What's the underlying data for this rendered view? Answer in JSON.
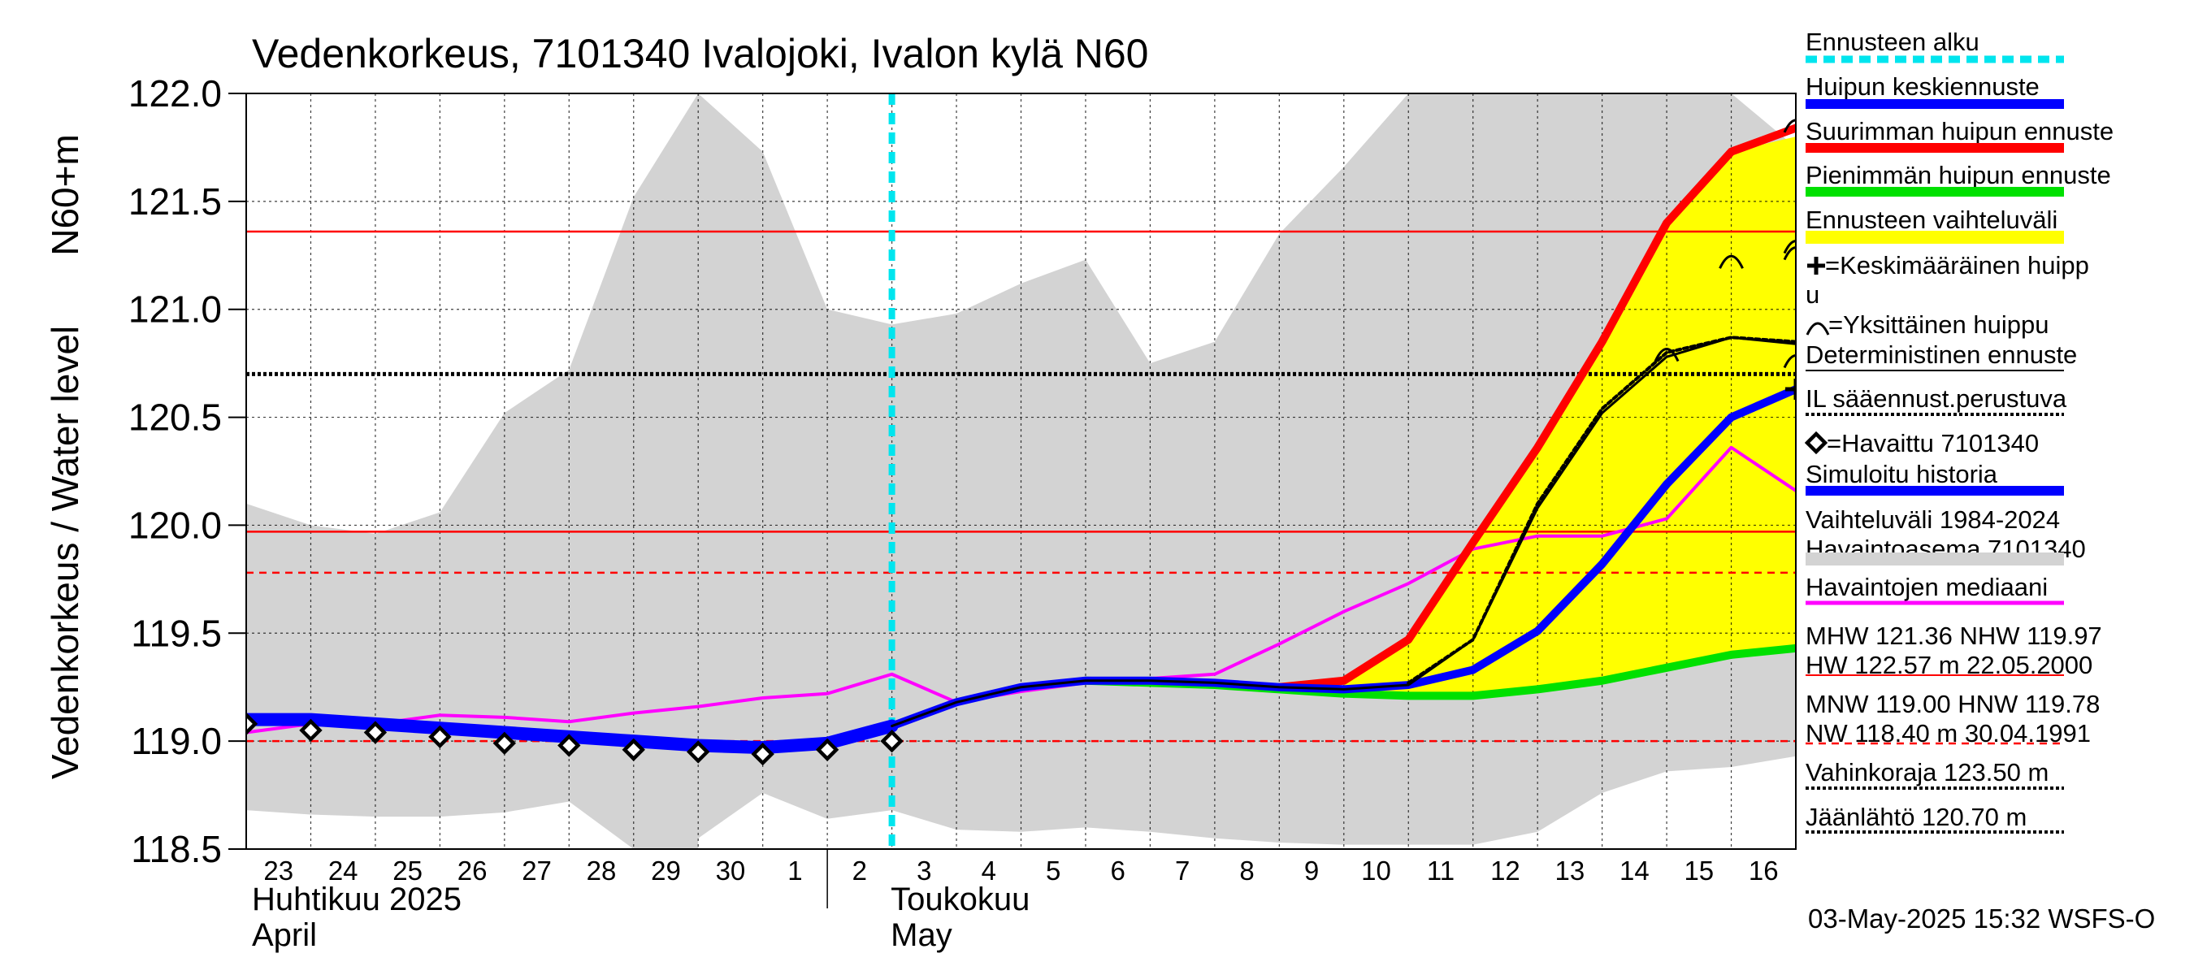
{
  "chart_data": {
    "type": "line",
    "title": "Vedenkorkeus, 7101340 Ivalojoki, Ivalon kylä N60",
    "ylabel": "Vedenkorkeus / Water level",
    "yunit": "N60+m",
    "ylim": [
      118.5,
      122.0
    ],
    "yticks": [
      118.5,
      119.0,
      119.5,
      120.0,
      120.5,
      121.0,
      121.5,
      122.0
    ],
    "ytick_labels": [
      "118.5",
      "119.0",
      "119.5",
      "120.0",
      "120.5",
      "121.0",
      "121.5",
      "122.0"
    ],
    "x_start": "2025-04-23",
    "x_end": "2025-05-17",
    "day_labels": [
      "23",
      "24",
      "25",
      "26",
      "27",
      "28",
      "29",
      "30",
      "1",
      "2",
      "3",
      "4",
      "5",
      "6",
      "7",
      "8",
      "9",
      "10",
      "11",
      "12",
      "13",
      "14",
      "15",
      "16"
    ],
    "month_labels": [
      {
        "fi": "Huhtikuu  2025",
        "en": "April",
        "start": "2025-04-23"
      },
      {
        "fi": "Toukokuu",
        "en": "May",
        "start": "2025-05-02"
      }
    ],
    "forecast_start": "2025-05-03",
    "grid": true,
    "legend_placement": "right",
    "timestamp": "03-May-2025 15:32 WSFS-O",
    "colors": {
      "history_range": "#d3d3d3",
      "forecast_range": "#ffff00",
      "mean_peak": "#0000ff",
      "max_peak": "#ff0000",
      "min_peak": "#00e000",
      "deterministic": "#000000",
      "median": "#ff00ff",
      "forecast_start": "#00e5ee",
      "ref_lines": "#ff0000"
    },
    "reference_lines": [
      {
        "label": "MHW",
        "value": 121.36,
        "style": "solid"
      },
      {
        "label": "NHW",
        "value": 119.97,
        "style": "solid"
      },
      {
        "label": "HNW",
        "value": 119.78,
        "style": "dashed"
      },
      {
        "label": "MNW",
        "value": 119.0,
        "style": "dashed"
      },
      {
        "label": "Jäänlähtö",
        "value": 120.7,
        "style": "dotted-black"
      }
    ],
    "series": [
      {
        "name": "Vaihteluväli 1984-2024",
        "key": "range_hi",
        "x": [
          "2025-04-23",
          "2025-04-24",
          "2025-04-25",
          "2025-04-26",
          "2025-04-27",
          "2025-04-28",
          "2025-04-29",
          "2025-04-30",
          "2025-05-01",
          "2025-05-02",
          "2025-05-03",
          "2025-05-04",
          "2025-05-05",
          "2025-05-06",
          "2025-05-07",
          "2025-05-08",
          "2025-05-09",
          "2025-05-10",
          "2025-05-11",
          "2025-05-12",
          "2025-05-13",
          "2025-05-14",
          "2025-05-15",
          "2025-05-16",
          "2025-05-17"
        ],
        "values": [
          120.1,
          120.0,
          119.96,
          120.06,
          120.52,
          120.72,
          121.52,
          122.0,
          121.73,
          121.0,
          120.93,
          120.98,
          121.12,
          121.23,
          120.75,
          120.85,
          121.35,
          121.66,
          122.0,
          122.0,
          122.0,
          122.0,
          122.0,
          122.0,
          121.75
        ]
      },
      {
        "key": "range_lo",
        "x": [
          "2025-04-23",
          "2025-04-24",
          "2025-04-25",
          "2025-04-26",
          "2025-04-27",
          "2025-04-28",
          "2025-04-29",
          "2025-04-30",
          "2025-04-30",
          "2025-05-01",
          "2025-05-02",
          "2025-05-03",
          "2025-05-04",
          "2025-05-05",
          "2025-05-06",
          "2025-05-07",
          "2025-05-08",
          "2025-05-09",
          "2025-05-10",
          "2025-05-11",
          "2025-05-12",
          "2025-05-13",
          "2025-05-14",
          "2025-05-15",
          "2025-05-16",
          "2025-05-17"
        ],
        "values": [
          118.68,
          118.66,
          118.65,
          118.65,
          118.67,
          118.72,
          118.5,
          118.5,
          118.55,
          118.76,
          118.64,
          118.68,
          118.59,
          118.58,
          118.6,
          118.58,
          118.55,
          118.53,
          118.52,
          118.52,
          118.52,
          118.58,
          118.76,
          118.86,
          118.88,
          118.93
        ]
      },
      {
        "name": "Ennusteen vaihteluväli",
        "key": "fc_hi",
        "x": [
          "2025-05-10",
          "2025-05-11",
          "2025-05-12",
          "2025-05-13",
          "2025-05-14",
          "2025-05-15",
          "2025-05-16",
          "2025-05-17"
        ],
        "values": [
          119.28,
          119.47,
          119.93,
          120.38,
          120.85,
          121.4,
          121.73,
          121.8
        ]
      },
      {
        "key": "fc_lo",
        "x": [
          "2025-05-10",
          "2025-05-11",
          "2025-05-12",
          "2025-05-13",
          "2025-05-14",
          "2025-05-15",
          "2025-05-16",
          "2025-05-17"
        ],
        "values": [
          119.22,
          119.21,
          119.21,
          119.24,
          119.28,
          119.34,
          119.4,
          119.43
        ]
      },
      {
        "name": "Havaittu 7101340",
        "key": "observed",
        "x": [
          "2025-04-23",
          "2025-04-24",
          "2025-04-25",
          "2025-04-26",
          "2025-04-27",
          "2025-04-28",
          "2025-04-29",
          "2025-04-30",
          "2025-05-01",
          "2025-05-02",
          "2025-05-03"
        ],
        "values": [
          119.08,
          119.05,
          119.04,
          119.02,
          118.99,
          118.98,
          118.96,
          118.95,
          118.94,
          118.96,
          119.0
        ]
      },
      {
        "name": "Simuloitu historia",
        "key": "simulated",
        "x": [
          "2025-04-23",
          "2025-04-24",
          "2025-04-25",
          "2025-04-26",
          "2025-04-27",
          "2025-04-28",
          "2025-04-29",
          "2025-04-30",
          "2025-05-01",
          "2025-05-02",
          "2025-05-03"
        ],
        "values": [
          119.1,
          119.1,
          119.08,
          119.06,
          119.04,
          119.02,
          119.0,
          118.98,
          118.97,
          118.99,
          119.07
        ]
      },
      {
        "name": "Huipun keskiennuste",
        "key": "mean_peak",
        "x": [
          "2025-05-03",
          "2025-05-04",
          "2025-05-05",
          "2025-05-06",
          "2025-05-07",
          "2025-05-08",
          "2025-05-09",
          "2025-05-10",
          "2025-05-11",
          "2025-05-12",
          "2025-05-13",
          "2025-05-14",
          "2025-05-15",
          "2025-05-16",
          "2025-05-17"
        ],
        "values": [
          119.07,
          119.18,
          119.25,
          119.28,
          119.28,
          119.27,
          119.25,
          119.24,
          119.26,
          119.33,
          119.51,
          119.82,
          120.19,
          120.5,
          120.63
        ]
      },
      {
        "name": "Suurimman huipun ennuste",
        "key": "max_peak",
        "x": [
          "2025-05-09",
          "2025-05-10",
          "2025-05-11",
          "2025-05-12",
          "2025-05-13",
          "2025-05-14",
          "2025-05-15",
          "2025-05-16",
          "2025-05-17"
        ],
        "values": [
          119.25,
          119.28,
          119.47,
          119.92,
          120.36,
          120.85,
          121.4,
          121.73,
          121.84
        ]
      },
      {
        "name": "Pienimmän huipun ennuste",
        "key": "min_peak",
        "x": [
          "2025-05-06",
          "2025-05-07",
          "2025-05-08",
          "2025-05-09",
          "2025-05-10",
          "2025-05-11",
          "2025-05-12",
          "2025-05-13",
          "2025-05-14",
          "2025-05-15",
          "2025-05-16",
          "2025-05-17"
        ],
        "values": [
          119.28,
          119.27,
          119.26,
          119.24,
          119.22,
          119.21,
          119.21,
          119.24,
          119.28,
          119.34,
          119.4,
          119.43
        ]
      },
      {
        "name": "Deterministinen ennuste",
        "key": "deterministic",
        "x": [
          "2025-05-03",
          "2025-05-04",
          "2025-05-05",
          "2025-05-06",
          "2025-05-07",
          "2025-05-08",
          "2025-05-09",
          "2025-05-10",
          "2025-05-11",
          "2025-05-12",
          "2025-05-13",
          "2025-05-14",
          "2025-05-15",
          "2025-05-16",
          "2025-05-17"
        ],
        "values": [
          119.07,
          119.18,
          119.25,
          119.28,
          119.28,
          119.27,
          119.25,
          119.24,
          119.26,
          119.47,
          120.08,
          120.52,
          120.78,
          120.87,
          120.84
        ]
      },
      {
        "name": "IL sääennust.perustuva",
        "key": "il",
        "x": [
          "2025-05-11",
          "2025-05-12",
          "2025-05-13",
          "2025-05-14",
          "2025-05-15",
          "2025-05-16",
          "2025-05-17"
        ],
        "values": [
          119.27,
          119.47,
          120.1,
          120.54,
          120.8,
          120.87,
          120.85
        ]
      },
      {
        "name": "Havaintojen mediaani",
        "key": "median",
        "x": [
          "2025-04-23",
          "2025-04-24",
          "2025-04-25",
          "2025-04-26",
          "2025-04-27",
          "2025-04-28",
          "2025-04-29",
          "2025-04-30",
          "2025-05-01",
          "2025-05-02",
          "2025-05-03",
          "2025-05-04",
          "2025-05-05",
          "2025-05-06",
          "2025-05-07",
          "2025-05-08",
          "2025-05-09",
          "2025-05-10",
          "2025-05-11",
          "2025-05-12",
          "2025-05-13",
          "2025-05-14",
          "2025-05-15",
          "2025-05-16",
          "2025-05-17"
        ],
        "values": [
          119.04,
          119.08,
          119.08,
          119.12,
          119.11,
          119.09,
          119.13,
          119.16,
          119.2,
          119.22,
          119.31,
          119.18,
          119.23,
          119.27,
          119.29,
          119.31,
          119.45,
          119.6,
          119.73,
          119.89,
          119.95,
          119.95,
          120.03,
          120.36,
          120.16
        ]
      }
    ],
    "single_peaks": [
      {
        "x": "2025-05-15",
        "y": 120.79
      },
      {
        "x": "2025-05-16",
        "y": 121.22
      },
      {
        "x": "2025-05-17",
        "y": 121.26
      },
      {
        "x": "2025-05-17",
        "y": 121.29
      },
      {
        "x": "2025-05-17",
        "y": 121.85
      },
      {
        "x": "2025-05-17",
        "y": 120.76
      }
    ],
    "mean_peak_marker": {
      "x": "2025-05-17",
      "y": 120.63
    },
    "legend": [
      {
        "key": "forecast_start",
        "label": "Ennusteen alku",
        "style": "dashed-cyan"
      },
      {
        "key": "mean_peak",
        "label": "Huipun keskiennuste",
        "style": "blue"
      },
      {
        "key": "max_peak",
        "label": "Suurimman huipun ennuste",
        "style": "red"
      },
      {
        "key": "min_peak",
        "label": "Pienimmän huipun ennuste",
        "style": "green"
      },
      {
        "key": "fc_range",
        "label": "Ennusteen vaihteluväli",
        "style": "yellow"
      },
      {
        "key": "mean_marker",
        "label": "=Keskimääräinen huipp",
        "label2": "u",
        "style": "plus"
      },
      {
        "key": "single_peak",
        "label": "=Yksittäinen huippu",
        "style": "arc"
      },
      {
        "key": "deterministic",
        "label": "Deterministinen ennuste",
        "style": "thin-black"
      },
      {
        "key": "il",
        "label": "IL sääennust.perustuva",
        "style": "dotted-black"
      },
      {
        "key": "observed",
        "label": "=Havaittu 7101340",
        "style": "diamond"
      },
      {
        "key": "simulated",
        "label": "Simuloitu historia",
        "style": "blue"
      },
      {
        "key": "range",
        "label": "Vaihteluväli 1984-2024",
        "label2": " Havaintoasema 7101340",
        "style": "gray"
      },
      {
        "key": "median",
        "label": "Havaintojen mediaani",
        "style": "magenta"
      },
      {
        "key": "mhw",
        "label": "MHW 121.36 NHW 119.97",
        "label2": "HW 122.57 m 22.05.2000",
        "style": "thin-red"
      },
      {
        "key": "mnw",
        "label": "MNW 119.00 HNW 119.78",
        "label2": "NW 118.40 m 30.04.1991",
        "style": "dashed-red"
      },
      {
        "key": "vahinko",
        "label": "Vahinkoraja 123.50 m",
        "style": "dotted-black"
      },
      {
        "key": "jaa",
        "label": "Jäänlähtö 120.70 m",
        "style": "dotted-black"
      }
    ]
  }
}
